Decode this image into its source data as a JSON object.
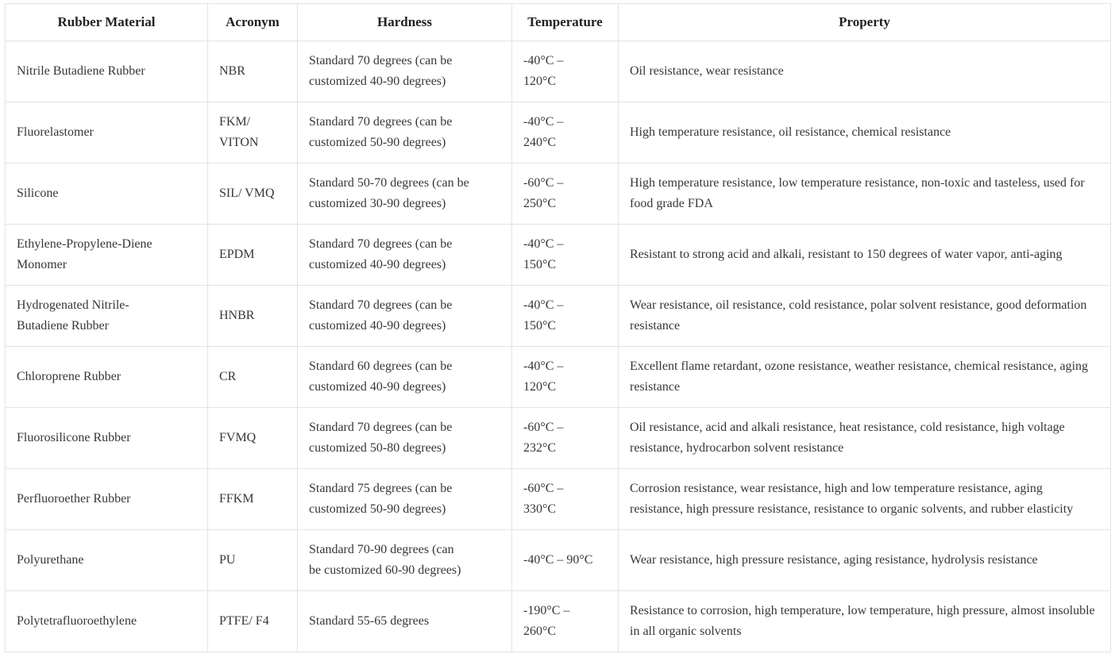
{
  "colors": {
    "background": "#ffffff",
    "border": "#e3e3e3",
    "header_text": "#222222",
    "body_text": "#373737"
  },
  "table": {
    "headers": [
      "Rubber Material",
      "Acronym",
      "Hardness",
      "Temperature",
      "Property"
    ],
    "rows": [
      {
        "material": "Nitrile Butadiene Rubber",
        "acronym": "NBR",
        "hardness": "Standard 70 degrees (can be\ncustomized 40-90 degrees)",
        "temperature": "-40°C –\n120°C",
        "property": "Oil resistance, wear resistance"
      },
      {
        "material": "Fluorelastomer",
        "acronym": "FKM/\nVITON",
        "hardness": "Standard 70 degrees (can be\ncustomized 50-90 degrees)",
        "temperature": "-40°C –\n240°C",
        "property": "High temperature resistance, oil resistance, chemical resistance"
      },
      {
        "material": "Silicone",
        "acronym": "SIL/ VMQ",
        "hardness": "Standard 50-70 degrees (can be\ncustomized 30-90 degrees)",
        "temperature": "-60°C –\n250°C",
        "property": "High temperature resistance, low temperature resistance, non-toxic and tasteless, used for food grade FDA"
      },
      {
        "material": "Ethylene-Propylene-Diene\nMonomer",
        "acronym": "EPDM",
        "hardness": "Standard 70 degrees (can be\ncustomized 40-90 degrees)",
        "temperature": "-40°C –\n150°C",
        "property": "Resistant to strong acid and alkali, resistant to 150 degrees of water vapor, anti-aging"
      },
      {
        "material": "Hydrogenated Nitrile-\nButadiene Rubber",
        "acronym": "HNBR",
        "hardness": "Standard 70 degrees (can be\ncustomized 40-90 degrees)",
        "temperature": "-40°C –\n150°C",
        "property": "Wear resistance, oil resistance, cold resistance, polar solvent resistance, good deformation resistance"
      },
      {
        "material": "Chloroprene Rubber",
        "acronym": "CR",
        "hardness": "Standard 60 degrees (can be\ncustomized 40-90 degrees)",
        "temperature": "-40°C –\n120°C",
        "property": "Excellent flame retardant, ozone resistance, weather resistance, chemical resistance, aging resistance"
      },
      {
        "material": "Fluorosilicone Rubber",
        "acronym": "FVMQ",
        "hardness": "Standard 70 degrees (can be\ncustomized 50-80 degrees)",
        "temperature": "-60°C –\n232°C",
        "property": "Oil resistance, acid and alkali resistance, heat resistance, cold resistance, high voltage resistance, hydrocarbon solvent resistance"
      },
      {
        "material": "Perfluoroether Rubber",
        "acronym": "FFKM",
        "hardness": "Standard 75 degrees (can be\ncustomized 50-90 degrees)",
        "temperature": "-60°C –\n330°C",
        "property": "Corrosion resistance, wear resistance, high and low temperature resistance, aging resistance, high pressure resistance, resistance to organic solvents, and rubber elasticity"
      },
      {
        "material": "Polyurethane",
        "acronym": "PU",
        "hardness": "Standard 70-90 degrees (can\nbe customized 60-90 degrees)",
        "temperature": "-40°C – 90°C",
        "property": "Wear resistance, high pressure resistance, aging resistance, hydrolysis resistance"
      },
      {
        "material": "Polytetrafluoroethylene",
        "acronym": "PTFE/ F4",
        "hardness": "Standard 55-65 degrees",
        "temperature": "-190°C –\n260°C",
        "property": "Resistance to corrosion, high temperature, low temperature, high pressure, almost insoluble in all organic solvents"
      }
    ]
  }
}
